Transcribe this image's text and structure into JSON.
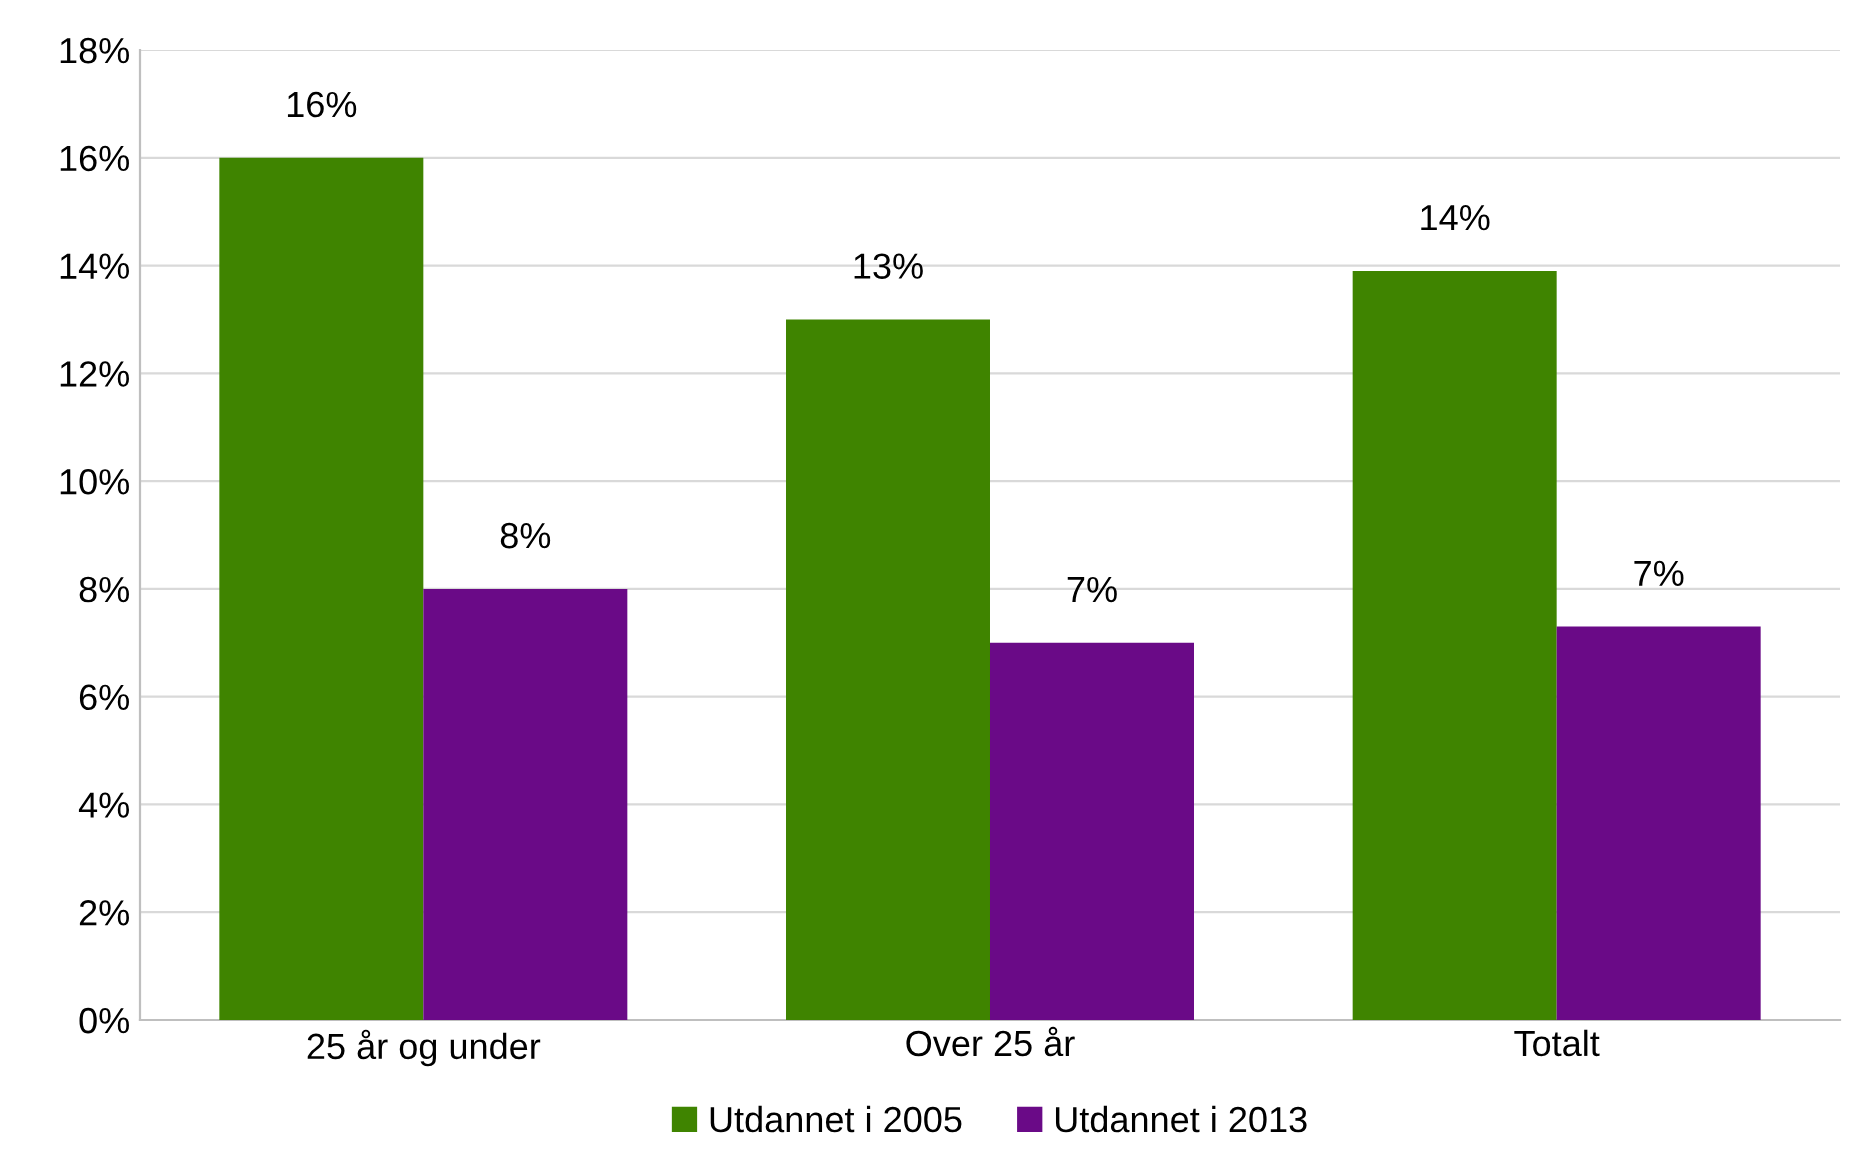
{
  "chart_data": {
    "type": "bar",
    "categories": [
      "25 år og under",
      "Over 25 år",
      "Totalt"
    ],
    "series": [
      {
        "name": "Utdannet i 2005",
        "color": "#3f8400",
        "values": [
          16,
          13,
          13.9
        ],
        "value_labels": [
          "16%",
          "13%",
          "14%"
        ]
      },
      {
        "name": "Utdannet i 2013",
        "color": "#6a0a87",
        "values": [
          8,
          7,
          7.3
        ],
        "value_labels": [
          "8%",
          "7%",
          "7%"
        ]
      }
    ],
    "ylim": [
      0,
      18
    ],
    "yticks": [
      {
        "value": 0,
        "label": "0%"
      },
      {
        "value": 2,
        "label": "2%"
      },
      {
        "value": 4,
        "label": "4%"
      },
      {
        "value": 6,
        "label": "6%"
      },
      {
        "value": 8,
        "label": "8%"
      },
      {
        "value": 10,
        "label": "10%"
      },
      {
        "value": 12,
        "label": "12%"
      },
      {
        "value": 14,
        "label": "14%"
      },
      {
        "value": 16,
        "label": "16%"
      },
      {
        "value": 18,
        "label": "18%"
      }
    ],
    "grid": "y",
    "legend": "bottom"
  }
}
